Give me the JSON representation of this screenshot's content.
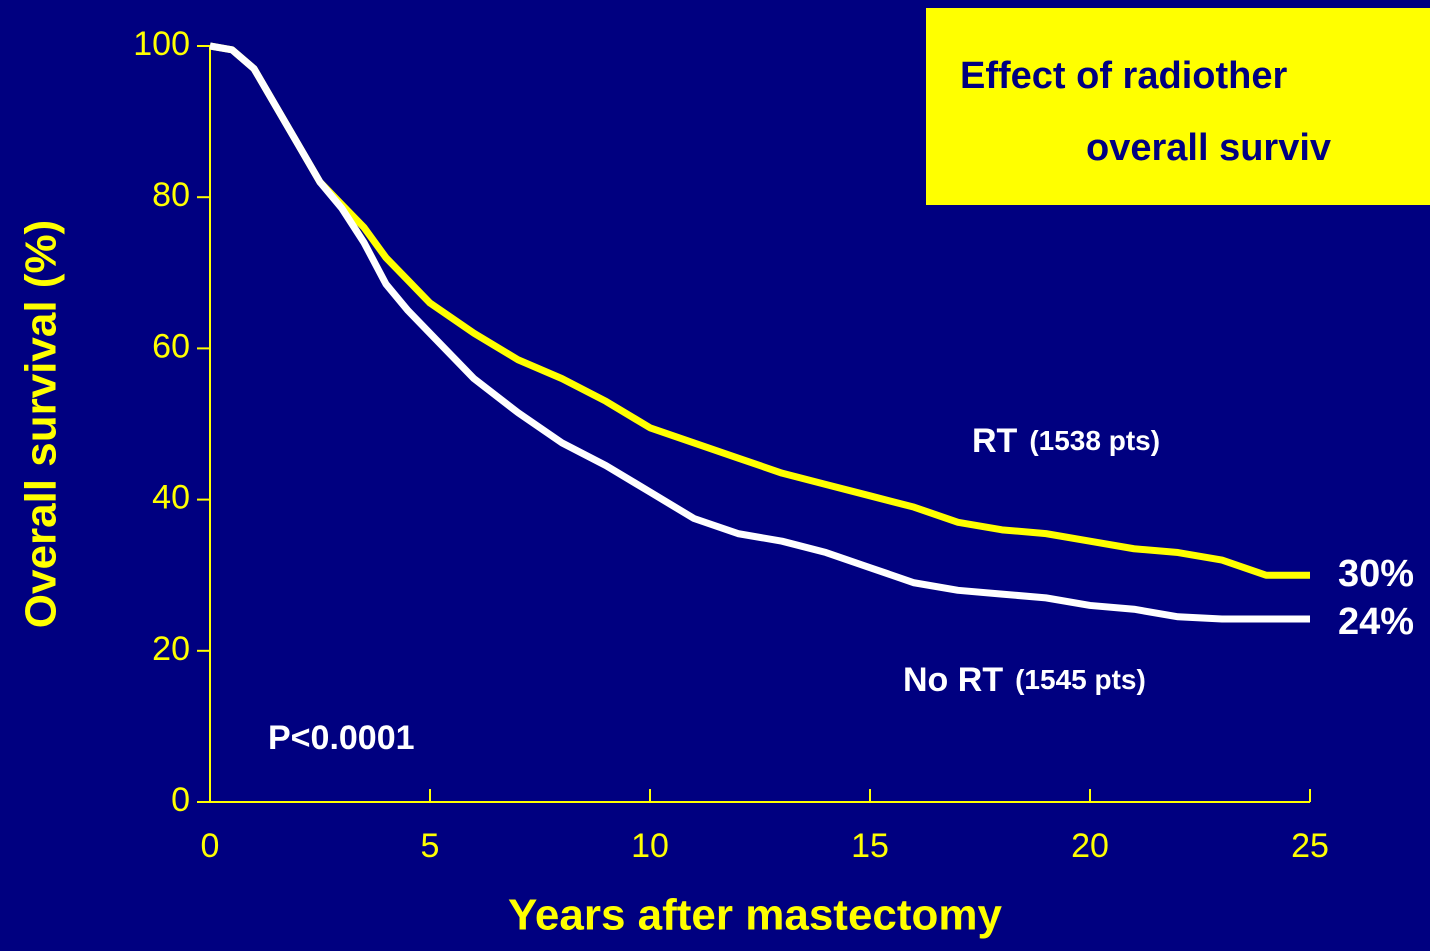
{
  "chart_data": {
    "type": "line",
    "title": [
      "Effect of radiother",
      "overall surviv"
    ],
    "x_label": "Years after mastectomy",
    "y_label": "Overall survival (%)",
    "xlim": [
      0,
      25
    ],
    "xticks": [
      0,
      5,
      10,
      15,
      20,
      25
    ],
    "ylim": [
      0,
      100
    ],
    "yticks": [
      0,
      20,
      40,
      60,
      80,
      100
    ],
    "x": [
      0,
      0.5,
      1,
      1.5,
      2,
      2.5,
      3,
      3.5,
      4,
      4.5,
      5,
      6,
      7,
      8,
      9,
      10,
      11,
      12,
      13,
      14,
      15,
      16,
      17,
      18,
      19,
      20,
      21,
      22,
      23,
      24,
      25
    ],
    "series": [
      {
        "name": "RT",
        "count_label": "(1538 pts)",
        "end_label": "30%",
        "color": "#ffff00",
        "values": [
          100,
          99.5,
          97,
          92,
          87,
          82,
          79,
          76,
          72,
          69,
          66,
          62,
          58.5,
          56,
          53,
          49.5,
          47.5,
          45.5,
          43.5,
          42,
          40.5,
          39,
          37,
          36,
          35.5,
          34.5,
          33.5,
          33,
          32,
          30,
          30
        ]
      },
      {
        "name": "No RT",
        "count_label": "(1545 pts)",
        "end_label": "24%",
        "color": "#ffffff",
        "values": [
          100,
          99.5,
          97,
          92,
          87,
          82,
          78.5,
          74,
          68.5,
          65,
          62,
          56,
          51.5,
          47.5,
          44.5,
          41,
          37.5,
          35.5,
          34.5,
          33,
          31,
          29,
          28,
          27.5,
          27,
          26,
          25.5,
          24.5,
          24.2,
          24.2,
          24.2
        ]
      }
    ],
    "annotation": "P<0.0001"
  }
}
